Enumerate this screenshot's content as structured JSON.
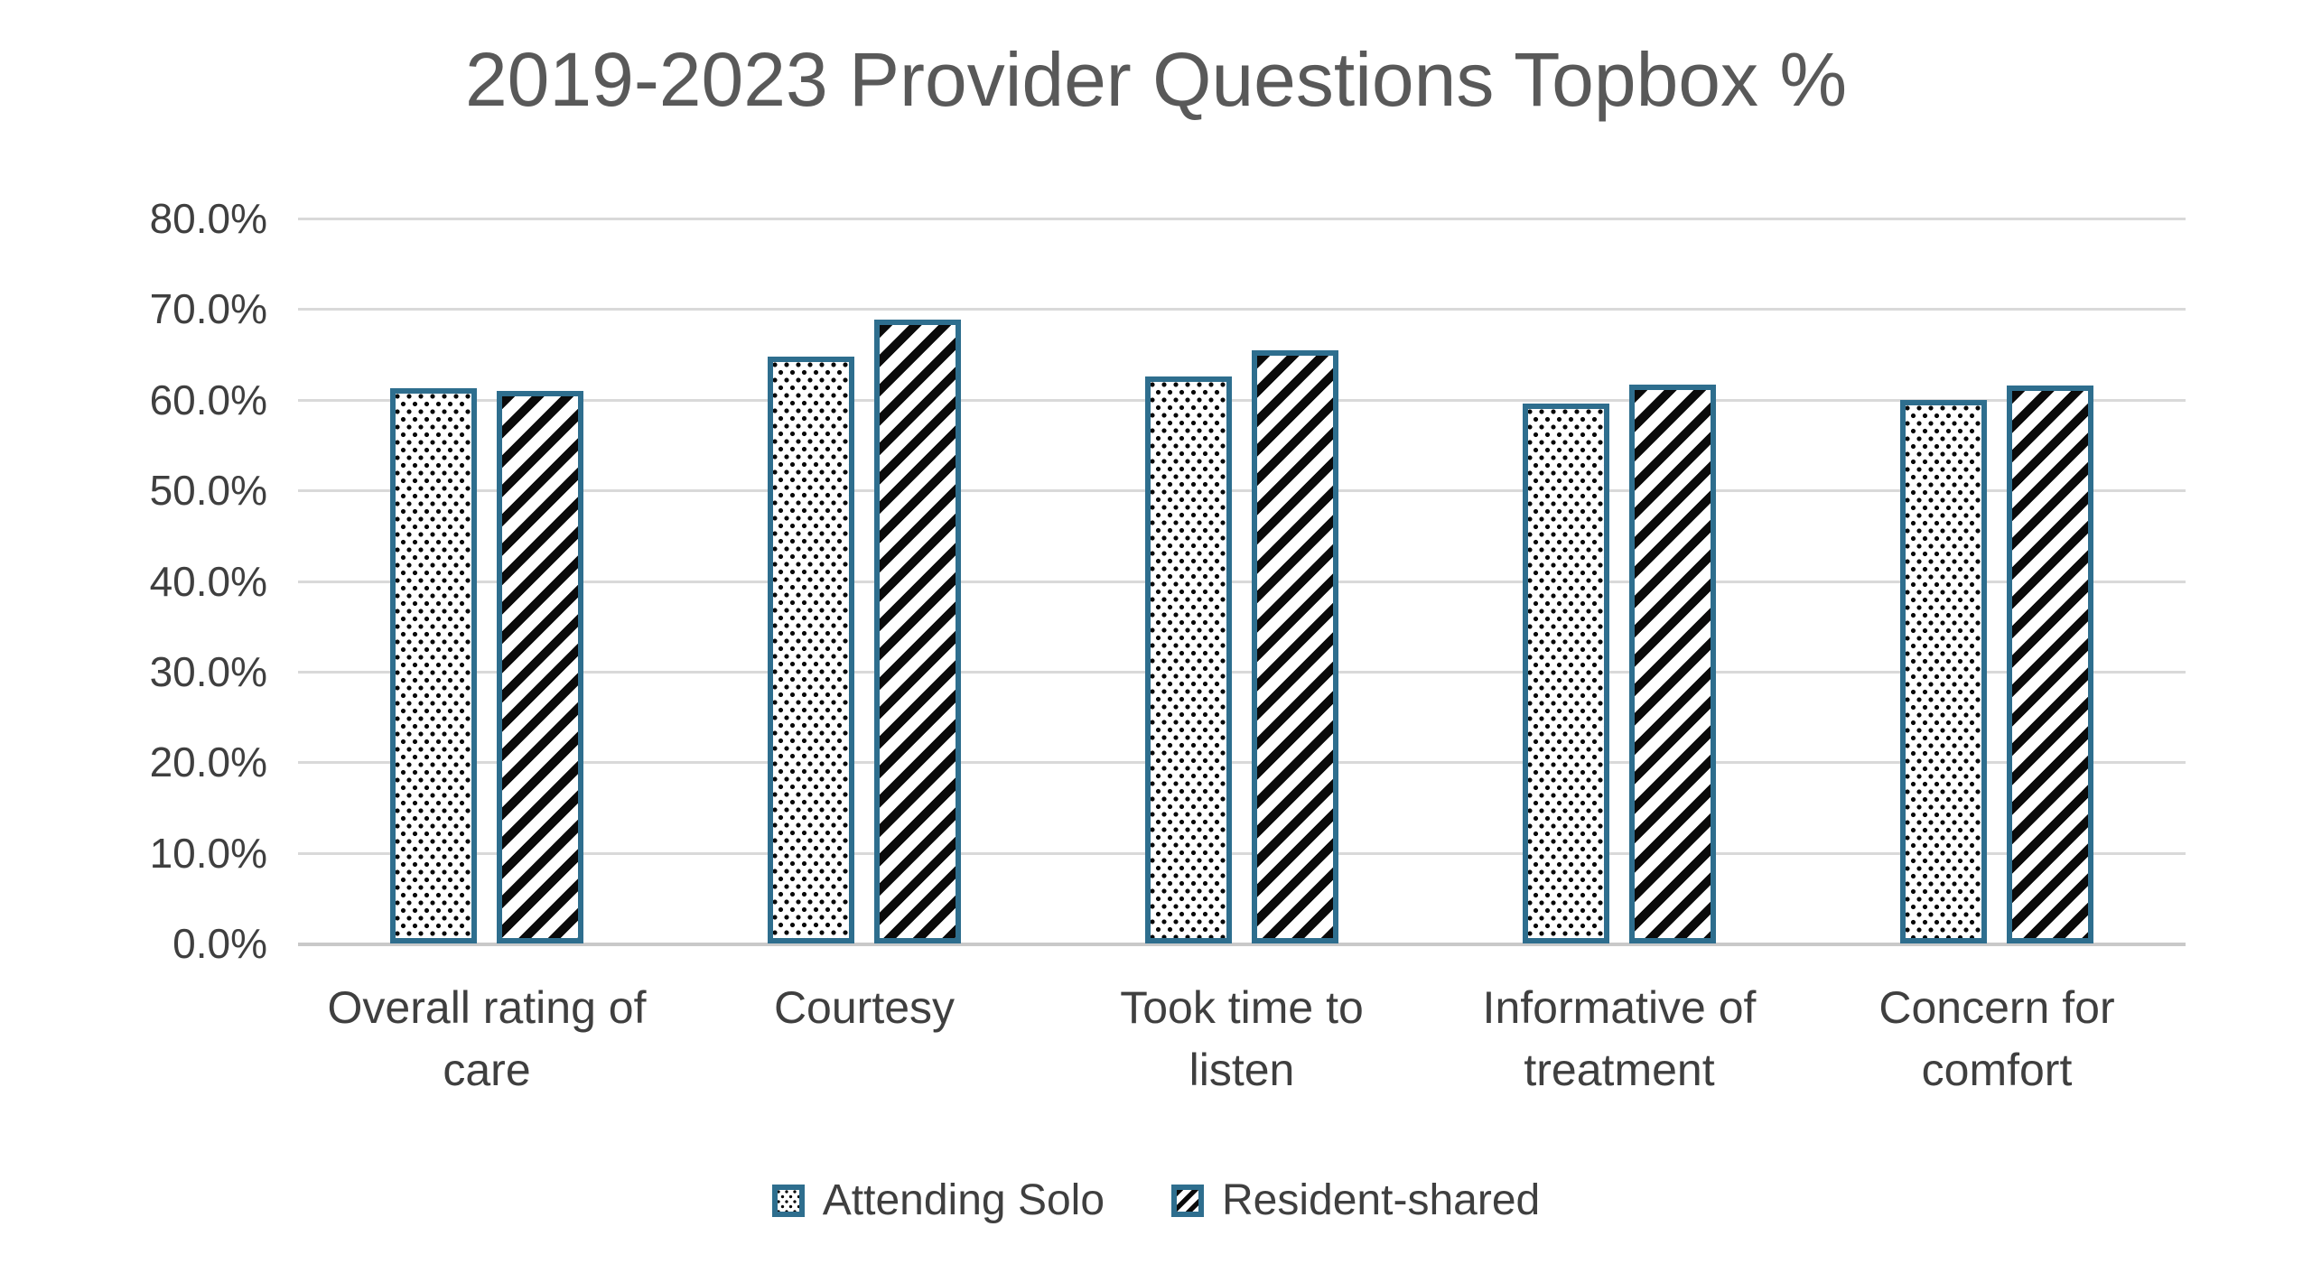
{
  "title": "2019-2023 Provider Questions Topbox %",
  "colors": {
    "bar_border": "#2E6E8E",
    "pattern_ink": "#0A0A0A",
    "gridline": "#D9D9D9",
    "axis_line": "#C9C9C9",
    "title_text": "#595959",
    "axis_text": "#3F3F3F",
    "background": "#FFFFFF"
  },
  "chart_data": {
    "type": "bar",
    "title": "2019-2023 Provider Questions Topbox %",
    "categories": [
      "Overall rating of care",
      "Courtesy",
      "Took time to listen",
      "Informative of treatment",
      "Concern for comfort"
    ],
    "category_lines": [
      [
        "Overall rating of",
        "care"
      ],
      [
        "Courtesy"
      ],
      [
        "Took time to",
        "listen"
      ],
      [
        "Informative of",
        "treatment"
      ],
      [
        "Concern for",
        "comfort"
      ]
    ],
    "series": [
      {
        "name": "Attending Solo",
        "pattern": "dots",
        "values": [
          61.3,
          64.8,
          62.6,
          59.6,
          60.0
        ]
      },
      {
        "name": "Resident-shared",
        "pattern": "diagonal-stripes",
        "values": [
          61.0,
          68.8,
          65.5,
          61.7,
          61.6
        ]
      }
    ],
    "xlabel": "",
    "ylabel": "",
    "ylim": [
      0,
      80
    ],
    "y_tick_step": 10,
    "y_tick_format": "percent_one_decimal",
    "y_ticks": [
      "0.0%",
      "10.0%",
      "20.0%",
      "30.0%",
      "40.0%",
      "50.0%",
      "60.0%",
      "70.0%",
      "80.0%"
    ],
    "grid": true,
    "legend_position": "bottom"
  },
  "legend": {
    "items": [
      {
        "label": "Attending Solo",
        "swatch": "dots"
      },
      {
        "label": "Resident-shared",
        "swatch": "diagonal-stripes"
      }
    ]
  }
}
